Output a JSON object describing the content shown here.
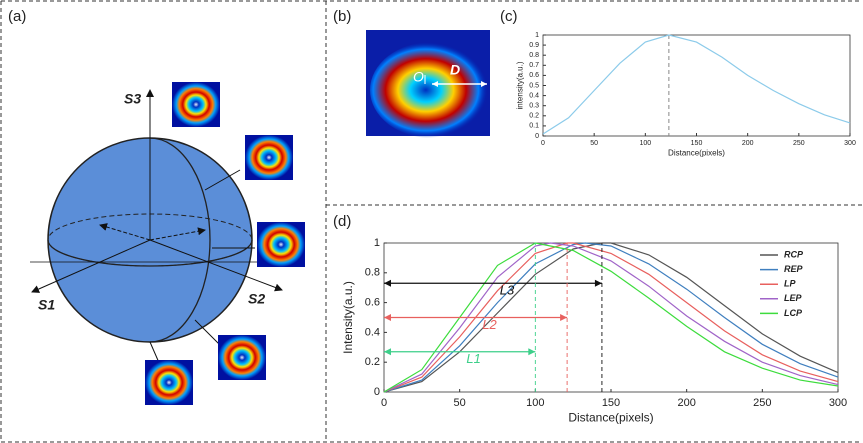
{
  "diagram": {
    "panel_labels": [
      "(a)",
      "(b)",
      "(c)",
      "(d)"
    ],
    "sphere_axes": [
      "S3",
      "S1",
      "S2"
    ],
    "image_labels": [
      "O",
      "D"
    ]
  },
  "chart_data": [
    {
      "type": "line",
      "x": [
        0,
        25,
        50,
        75,
        100,
        123,
        150,
        175,
        200,
        225,
        250,
        275,
        300
      ],
      "values": [
        0.02,
        0.18,
        0.45,
        0.72,
        0.93,
        1,
        0.93,
        0.78,
        0.6,
        0.45,
        0.32,
        0.21,
        0.13
      ],
      "color": "#8ccbea",
      "peak_x": 123,
      "xlim": [
        0,
        300
      ],
      "ylim": [
        0,
        1
      ],
      "xticks": [
        0,
        50,
        100,
        150,
        200,
        250,
        300
      ],
      "yticks": [
        0,
        0.1,
        0.2,
        0.3,
        0.4,
        0.5,
        0.6,
        0.7,
        0.8,
        0.9,
        1
      ],
      "xlabel": "Distance(pixels)",
      "ylabel": "intensity(a.u.)"
    },
    {
      "type": "line",
      "xlim": [
        0,
        300
      ],
      "ylim": [
        0,
        1
      ],
      "xticks": [
        0,
        50,
        100,
        150,
        200,
        250,
        300
      ],
      "yticks": [
        0,
        0.2,
        0.4,
        0.6,
        0.8,
        1
      ],
      "xlabel": "Distance(pixels)",
      "ylabel": "Intensity(a.u.)",
      "legend": "right",
      "series": [
        {
          "name": "RCP",
          "color": "#555555",
          "x": [
            0,
            25,
            50,
            75,
            100,
            125,
            144,
            150,
            175,
            200,
            225,
            250,
            275,
            300
          ],
          "values": [
            0,
            0.07,
            0.27,
            0.53,
            0.79,
            0.96,
            1,
            1,
            0.92,
            0.77,
            0.58,
            0.39,
            0.24,
            0.13
          ]
        },
        {
          "name": "REP",
          "color": "#3f7fbf",
          "x": [
            0,
            25,
            50,
            75,
            100,
            125,
            133,
            150,
            175,
            200,
            225,
            250,
            275,
            300
          ],
          "values": [
            0,
            0.08,
            0.31,
            0.6,
            0.86,
            0.99,
            1,
            0.98,
            0.86,
            0.69,
            0.5,
            0.32,
            0.19,
            0.1
          ]
        },
        {
          "name": "LP",
          "color": "#e8605e",
          "x": [
            0,
            25,
            50,
            75,
            100,
            121,
            125,
            150,
            175,
            200,
            225,
            250,
            275,
            300
          ],
          "values": [
            0,
            0.1,
            0.37,
            0.68,
            0.93,
            1,
            1,
            0.93,
            0.79,
            0.6,
            0.41,
            0.25,
            0.14,
            0.07
          ]
        },
        {
          "name": "LEP",
          "color": "#a064c8",
          "x": [
            0,
            25,
            50,
            75,
            100,
            110,
            125,
            150,
            175,
            200,
            225,
            250,
            275,
            300
          ],
          "values": [
            0,
            0.12,
            0.43,
            0.77,
            0.98,
            1,
            0.98,
            0.88,
            0.71,
            0.51,
            0.34,
            0.2,
            0.11,
            0.05
          ]
        },
        {
          "name": "LCP",
          "color": "#3ddc3d",
          "x": [
            0,
            25,
            50,
            75,
            100,
            125,
            150,
            175,
            200,
            225,
            250,
            275,
            300
          ],
          "values": [
            0,
            0.15,
            0.5,
            0.85,
            1,
            0.95,
            0.81,
            0.63,
            0.44,
            0.27,
            0.16,
            0.08,
            0.04
          ]
        }
      ],
      "annotations": [
        {
          "label": "L3",
          "x": [
            0,
            144
          ],
          "y": 0.73,
          "color": "#111111"
        },
        {
          "label": "L2",
          "x": [
            0,
            121
          ],
          "y": 0.5,
          "color": "#e8605e"
        },
        {
          "label": "L1",
          "x": [
            0,
            100
          ],
          "y": 0.27,
          "color": "#3dcf8a"
        }
      ]
    }
  ]
}
